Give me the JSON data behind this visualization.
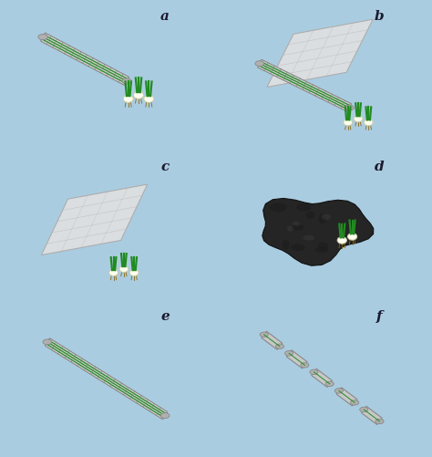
{
  "panels": [
    "a",
    "b",
    "c",
    "d",
    "e",
    "f"
  ],
  "bg_color": "#87ceeb",
  "label_fontsize": 11,
  "label_color": "#1a1a2e"
}
